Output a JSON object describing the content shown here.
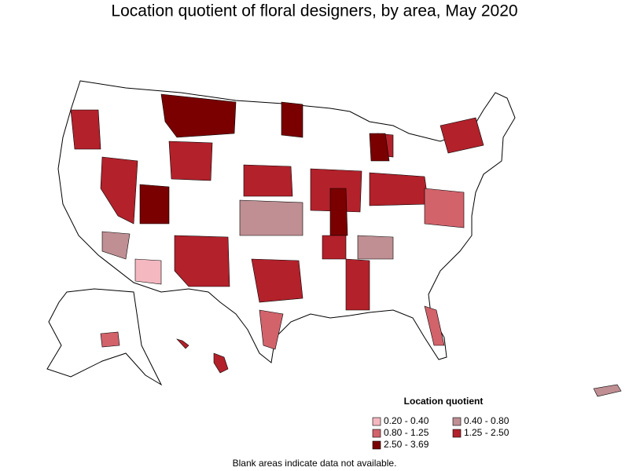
{
  "title": "Location quotient of floral designers, by area, May 2020",
  "legend": {
    "title": "Location quotient",
    "items": [
      {
        "label": "0.20 - 0.40",
        "color": "#f4b8c0"
      },
      {
        "label": "0.40 - 0.80",
        "color": "#bf8f93"
      },
      {
        "label": "0.80 - 1.25",
        "color": "#d2636b"
      },
      {
        "label": "1.25 - 2.50",
        "color": "#b3212b"
      },
      {
        "label": "2.50 - 3.69",
        "color": "#7a0000"
      }
    ]
  },
  "note": "Blank areas indicate data not available."
}
